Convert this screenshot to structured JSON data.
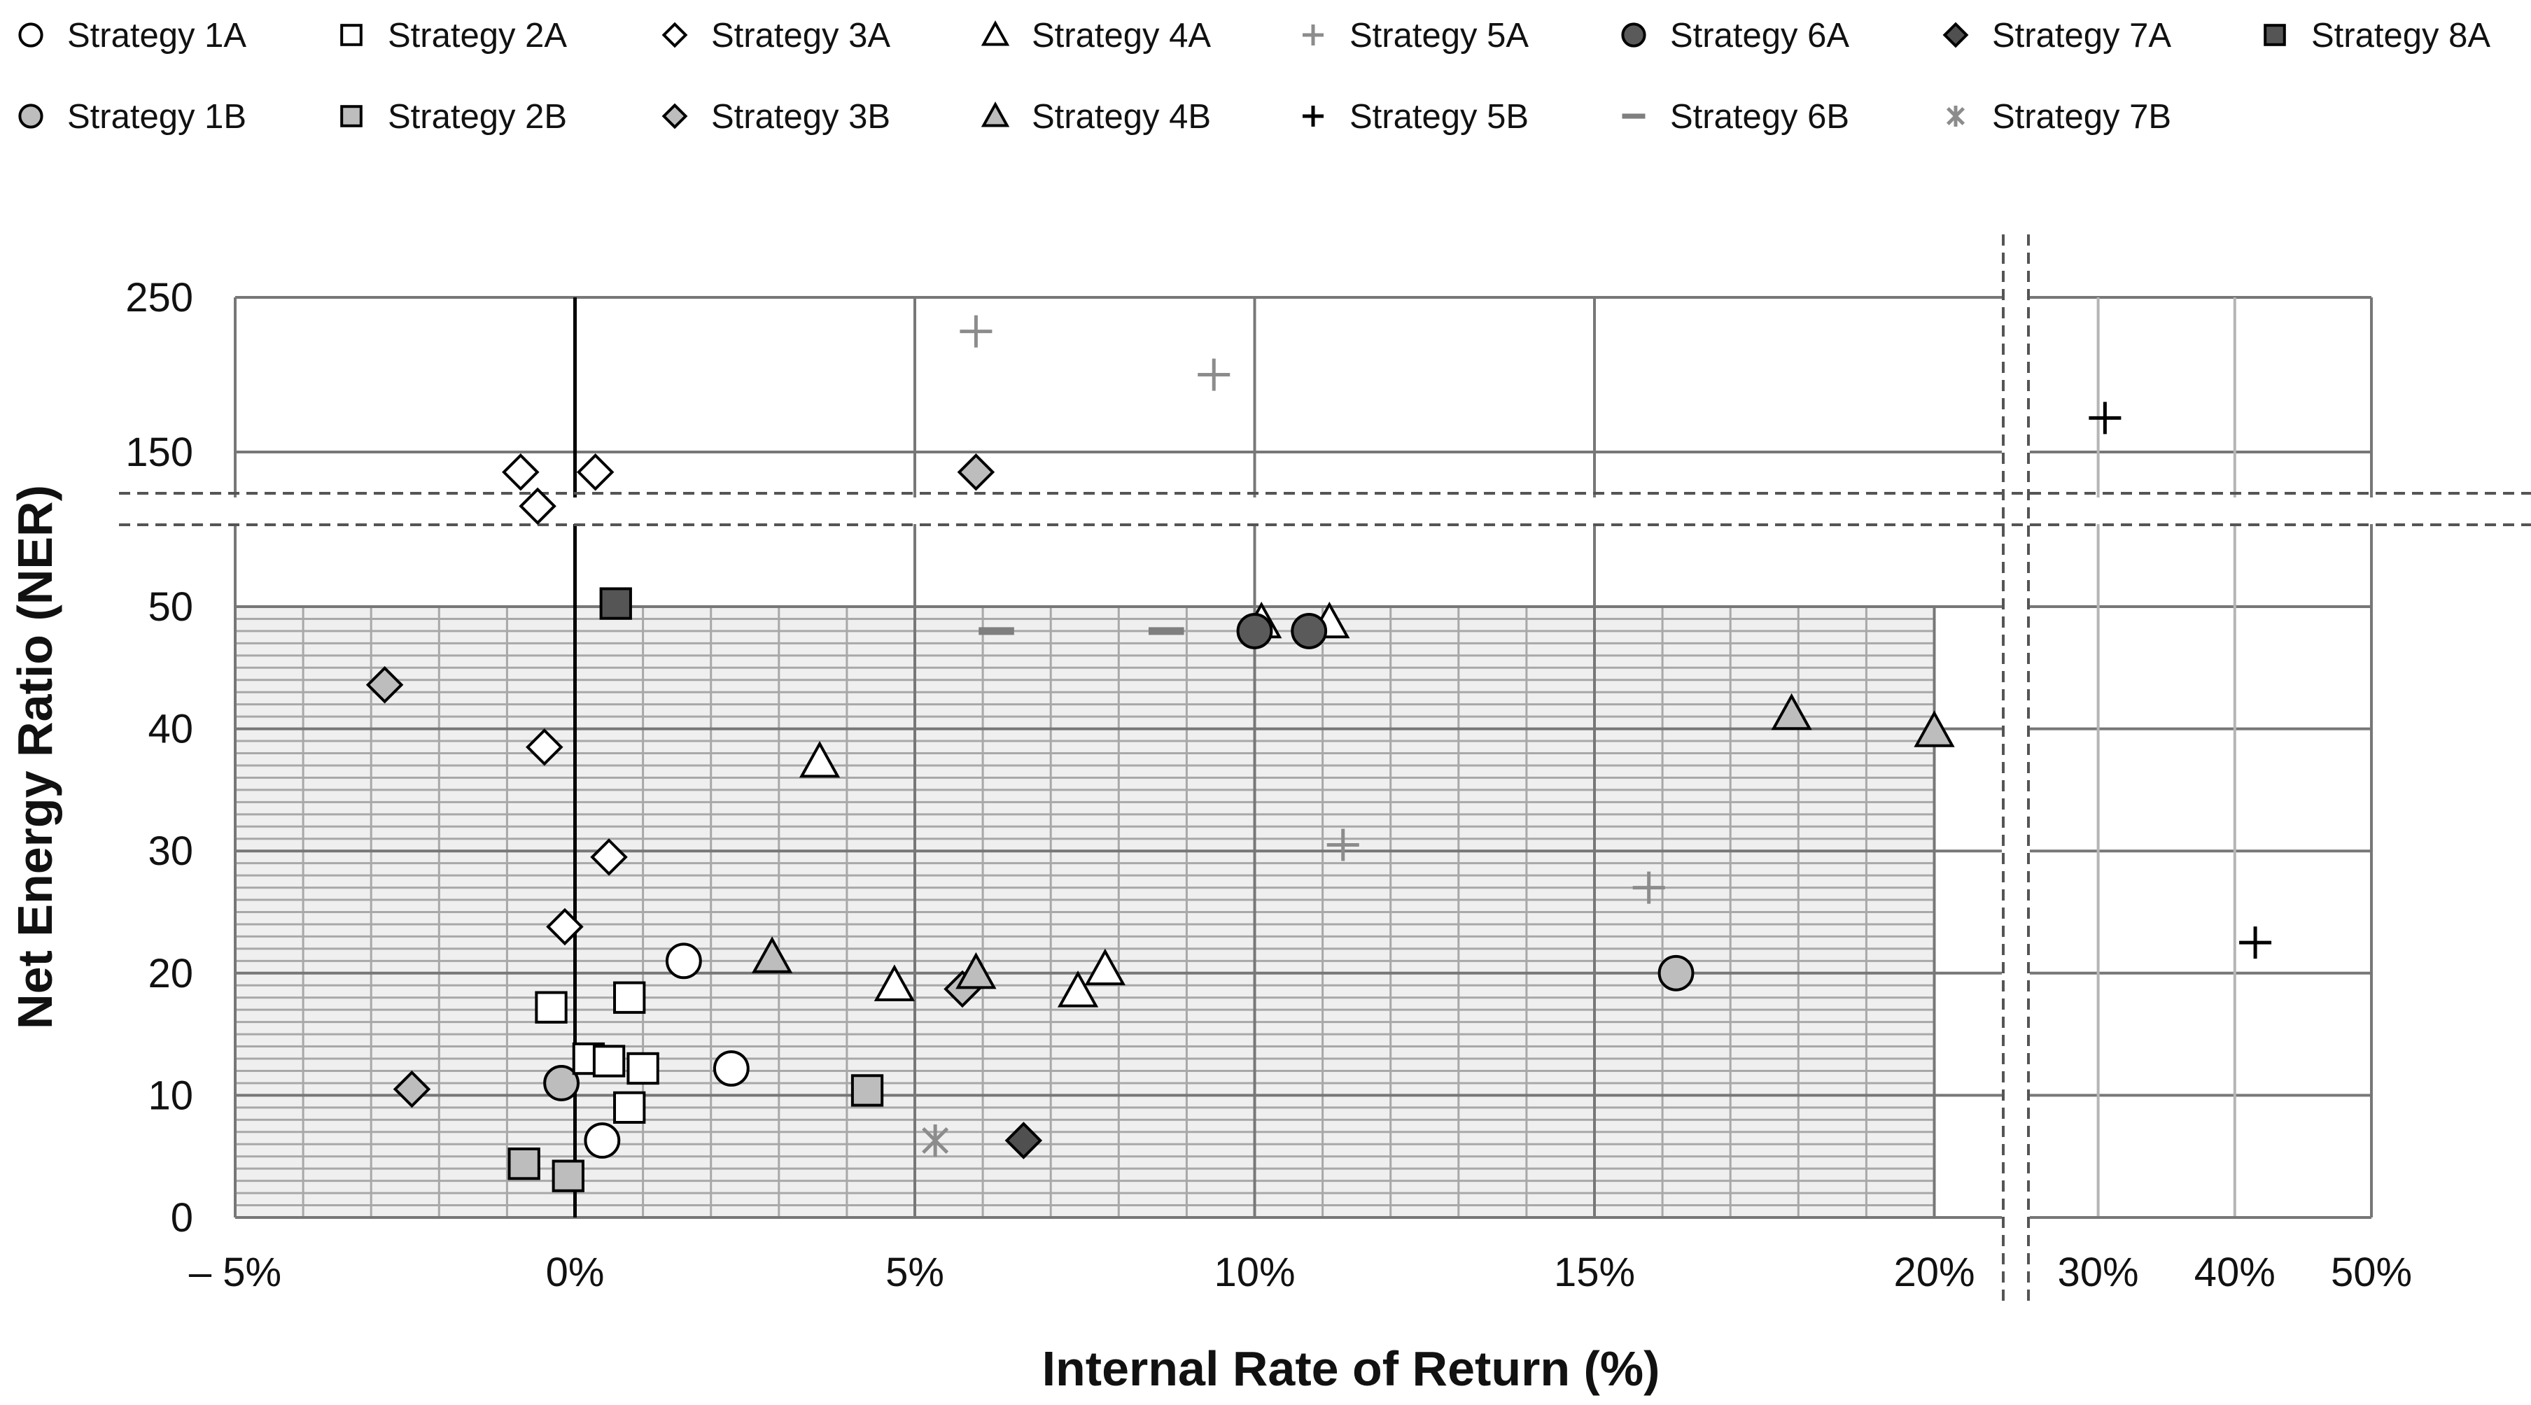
{
  "chart_data": {
    "type": "scatter",
    "title": "",
    "xlabel": "Internal Rate of Return (%)",
    "ylabel": "Net Energy Ratio (NER)",
    "x_ticks_main": [
      "– 5%",
      "0%",
      "5%",
      "10%",
      "15%",
      "20%"
    ],
    "x_ticks_right": [
      "30%",
      "40%",
      "50%"
    ],
    "y_ticks_lower": [
      "0",
      "10",
      "20",
      "30",
      "40",
      "50"
    ],
    "y_ticks_upper": [
      "150",
      "250"
    ],
    "xlim_main": [
      -5,
      21
    ],
    "xlim_right": [
      25,
      50
    ],
    "ylim_lower": [
      0,
      50
    ],
    "ylim_upper": [
      50,
      250
    ],
    "axis_breaks": {
      "x": "between 21% and 25%",
      "y": "between 50 and 150"
    },
    "grid": true,
    "legend": "top",
    "series": [
      {
        "name": "Strategy 1A",
        "marker": "circle",
        "fill": "#ffffff",
        "points": [
          [
            1.6,
            21
          ],
          [
            2.3,
            12.2
          ],
          [
            0.4,
            6.3
          ]
        ]
      },
      {
        "name": "Strategy 1B",
        "marker": "circle",
        "fill": "#bdbdbd",
        "points": [
          [
            -0.2,
            11
          ],
          [
            16.2,
            20
          ]
        ]
      },
      {
        "name": "Strategy 2A",
        "marker": "square",
        "fill": "#ffffff",
        "points": [
          [
            -0.35,
            17.2
          ],
          [
            0.2,
            13
          ],
          [
            0.5,
            12.8
          ],
          [
            1,
            12.2
          ],
          [
            0.8,
            18
          ],
          [
            0.8,
            9
          ]
        ]
      },
      {
        "name": "Strategy 2B",
        "marker": "square",
        "fill": "#bdbdbd",
        "points": [
          [
            -0.75,
            4.4
          ],
          [
            -0.1,
            3.4
          ],
          [
            4.3,
            10.4
          ]
        ]
      },
      {
        "name": "Strategy 3A",
        "marker": "diamond",
        "fill": "#ffffff",
        "points": [
          [
            -0.8,
            137
          ],
          [
            -0.55,
            115
          ],
          [
            0.3,
            137
          ],
          [
            -0.45,
            38.5
          ],
          [
            0.5,
            29.5
          ],
          [
            -0.15,
            23.8
          ]
        ]
      },
      {
        "name": "Strategy 3B",
        "marker": "diamond",
        "fill": "#bdbdbd",
        "points": [
          [
            -2.8,
            43.6
          ],
          [
            -2.4,
            10.5
          ],
          [
            5.7,
            18.7
          ],
          [
            5.9,
            137
          ]
        ]
      },
      {
        "name": "Strategy 4A",
        "marker": "triangle",
        "fill": "#ffffff",
        "points": [
          [
            3.6,
            37.3
          ],
          [
            4.7,
            19
          ],
          [
            7.4,
            18.5
          ],
          [
            7.8,
            20.3
          ],
          [
            10.1,
            48.7
          ],
          [
            11.1,
            48.7
          ]
        ]
      },
      {
        "name": "Strategy 4B",
        "marker": "triangle",
        "fill": "#bdbdbd",
        "points": [
          [
            2.9,
            21.3
          ],
          [
            5.9,
            20
          ],
          [
            17.9,
            41.2
          ],
          [
            20,
            39.8
          ]
        ]
      },
      {
        "name": "Strategy 5A",
        "marker": "plus",
        "fill": "#8c8c8c",
        "points": [
          [
            5.9,
            228
          ],
          [
            9.4,
            200
          ],
          [
            11.3,
            30.5
          ],
          [
            15.8,
            27
          ]
        ]
      },
      {
        "name": "Strategy 5B",
        "marker": "plus",
        "fill": "#000000",
        "points": [
          [
            30.5,
            172
          ],
          [
            41.5,
            22.5
          ]
        ]
      },
      {
        "name": "Strategy 6A",
        "marker": "circle",
        "fill": "#5a5a5a",
        "points": [
          [
            10,
            48
          ],
          [
            10.8,
            48
          ]
        ]
      },
      {
        "name": "Strategy 6B",
        "marker": "dash",
        "fill": "#7f7f7f",
        "points": [
          [
            6.2,
            48
          ],
          [
            8.7,
            48
          ]
        ]
      },
      {
        "name": "Strategy 7A",
        "marker": "diamond",
        "fill": "#505050",
        "points": [
          [
            6.6,
            6.3
          ]
        ]
      },
      {
        "name": "Strategy 7B",
        "marker": "asterisk",
        "fill": "#8c8c8c",
        "points": [
          [
            5.3,
            6.3
          ]
        ]
      },
      {
        "name": "Strategy 8A",
        "marker": "square",
        "fill": "#555555",
        "points": [
          [
            0.6,
            52
          ]
        ]
      }
    ]
  }
}
